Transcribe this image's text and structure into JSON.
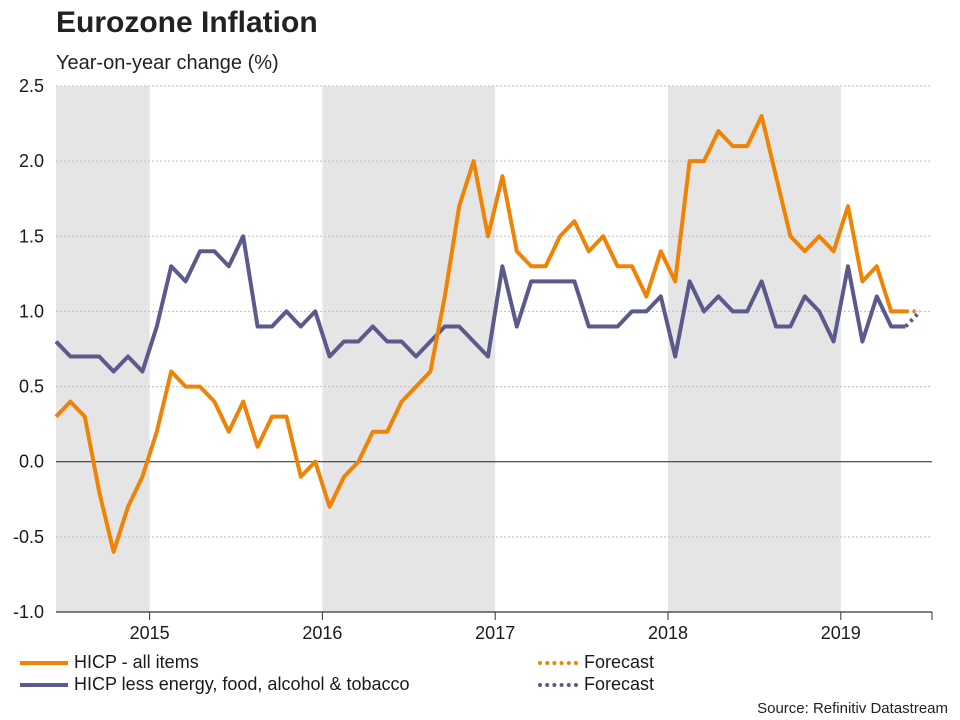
{
  "title": "Eurozone Inflation",
  "subtitle": "Year-on-year change (%)",
  "source": "Source: Refinitiv Datastream",
  "colors": {
    "headline": "#EF8306",
    "core": "#5B5A8D",
    "shade": "#E5E5E5",
    "grid": "#BFBFBF",
    "axis": "#333333"
  },
  "legend": {
    "headline_label": "HICP - all items",
    "core_label": "HICP less energy, food, alcohol & tobacco",
    "forecast_label_1": "Forecast",
    "forecast_label_2": "Forecast"
  },
  "chart_data": {
    "type": "line",
    "title": "Eurozone Inflation",
    "ylabel": "Year-on-year change (%)",
    "ylim": [
      -1.0,
      2.5
    ],
    "yticks": [
      "2.5",
      "2.0",
      "1.5",
      "1.0",
      "0.5",
      "0.0",
      "-0.5",
      "-1.0"
    ],
    "ytick_values": [
      2.5,
      2.0,
      1.5,
      1.0,
      0.5,
      0.0,
      -0.5,
      -1.0
    ],
    "x_start": "2014-06",
    "n_months": 60,
    "year_labels": [
      {
        "label": "2015",
        "month_index": 6.5
      },
      {
        "label": "2016",
        "month_index": 18.5
      },
      {
        "label": "2017",
        "month_index": 30.5
      },
      {
        "label": "2018",
        "month_index": 42.5
      },
      {
        "label": "2019",
        "month_index": 54.5
      }
    ],
    "shaded_years": [
      2014,
      2016,
      2018
    ],
    "series": [
      {
        "name": "HICP - all items",
        "values": [
          0.3,
          0.4,
          0.3,
          -0.2,
          -0.6,
          -0.3,
          -0.1,
          0.2,
          0.6,
          0.5,
          0.5,
          0.4,
          0.2,
          0.4,
          0.1,
          0.3,
          0.3,
          -0.1,
          0.0,
          -0.3,
          -0.1,
          0.0,
          0.2,
          0.2,
          0.4,
          0.5,
          0.6,
          1.1,
          1.7,
          2.0,
          1.5,
          1.9,
          1.4,
          1.3,
          1.3,
          1.5,
          1.6,
          1.4,
          1.5,
          1.3,
          1.3,
          1.1,
          1.4,
          1.2,
          2.0,
          2.0,
          2.2,
          2.1,
          2.1,
          2.3,
          1.9,
          1.5,
          1.4,
          1.5,
          1.4,
          1.7,
          1.2,
          1.3,
          1.0,
          1.0
        ]
      },
      {
        "name": "HICP - all items forecast",
        "start_index": 59,
        "values": [
          1.0,
          1.0
        ]
      },
      {
        "name": "HICP less energy, food, alcohol & tobacco",
        "values": [
          0.8,
          0.7,
          0.7,
          0.7,
          0.6,
          0.7,
          0.6,
          0.9,
          1.3,
          1.2,
          1.4,
          1.4,
          1.3,
          1.5,
          0.9,
          0.9,
          1.0,
          0.9,
          1.0,
          0.7,
          0.8,
          0.8,
          0.9,
          0.8,
          0.8,
          0.7,
          0.8,
          0.9,
          0.9,
          0.8,
          0.7,
          1.3,
          0.9,
          1.2,
          1.2,
          1.2,
          1.2,
          0.9,
          0.9,
          0.9,
          1.0,
          1.0,
          1.1,
          0.7,
          1.2,
          1.0,
          1.1,
          1.0,
          1.0,
          1.2,
          0.9,
          0.9,
          1.1,
          1.0,
          0.8,
          1.3,
          0.8,
          1.1,
          0.9,
          0.9
        ]
      },
      {
        "name": "HICP less energy, food, alcohol & tobacco forecast",
        "start_index": 59,
        "values": [
          0.9,
          1.0
        ]
      }
    ]
  }
}
